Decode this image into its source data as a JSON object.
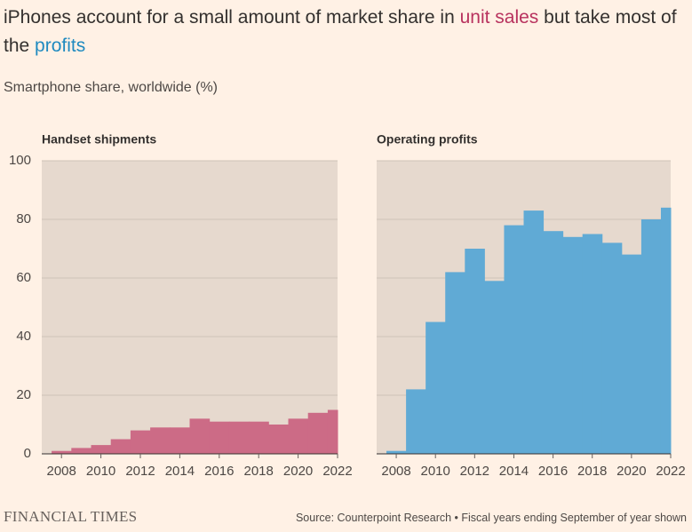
{
  "title": [
    {
      "text": "iPhones account for a small amount of market share in "
    },
    {
      "text": "unit sales",
      "color": "#b8325e"
    },
    {
      "text": " but take most of the "
    },
    {
      "text": "profits",
      "color": "#1f8ac0"
    }
  ],
  "subtitle": "Smartphone share, worldwide (%)",
  "brand": "FINANCIAL TIMES",
  "source": "Source: Counterpoint Research • Fiscal years ending September of year shown",
  "chart_data": [
    {
      "type": "histogram",
      "title": "Handset shipments",
      "color": "#cc6b86",
      "bins": [
        2007.5,
        2008.5,
        2009.5,
        2010.5,
        2011.5,
        2012.5,
        2013.5,
        2014.5,
        2015.5,
        2016.5,
        2017.5,
        2018.5,
        2019.5,
        2020.5,
        2021.5,
        2022
      ],
      "values": [
        1,
        2,
        3,
        5,
        8,
        9,
        9,
        12,
        11,
        11,
        11,
        10,
        12,
        14,
        15
      ],
      "xlim": [
        2007,
        2022
      ],
      "xticks": [
        2008,
        2010,
        2012,
        2014,
        2016,
        2018,
        2020,
        2022
      ],
      "ylim": [
        0,
        100
      ],
      "yticks": [
        0,
        20,
        40,
        60,
        80,
        100
      ],
      "grid": true,
      "show_ytick_labels": true
    },
    {
      "type": "histogram",
      "title": "Operating profits",
      "color": "#60aad5",
      "bins": [
        2007.5,
        2008.5,
        2009.5,
        2010.5,
        2011.5,
        2012.5,
        2013.5,
        2014.5,
        2015.5,
        2016.5,
        2017.5,
        2018.5,
        2019.5,
        2020.5,
        2021.5,
        2022
      ],
      "values": [
        1,
        22,
        45,
        62,
        70,
        59,
        78,
        83,
        76,
        74,
        75,
        72,
        68,
        80,
        84
      ],
      "xlim": [
        2007,
        2022
      ],
      "xticks": [
        2008,
        2010,
        2012,
        2014,
        2016,
        2018,
        2020,
        2022
      ],
      "ylim": [
        0,
        100
      ],
      "yticks": [
        0,
        20,
        40,
        60,
        80,
        100
      ],
      "grid": true,
      "show_ytick_labels": false
    }
  ]
}
